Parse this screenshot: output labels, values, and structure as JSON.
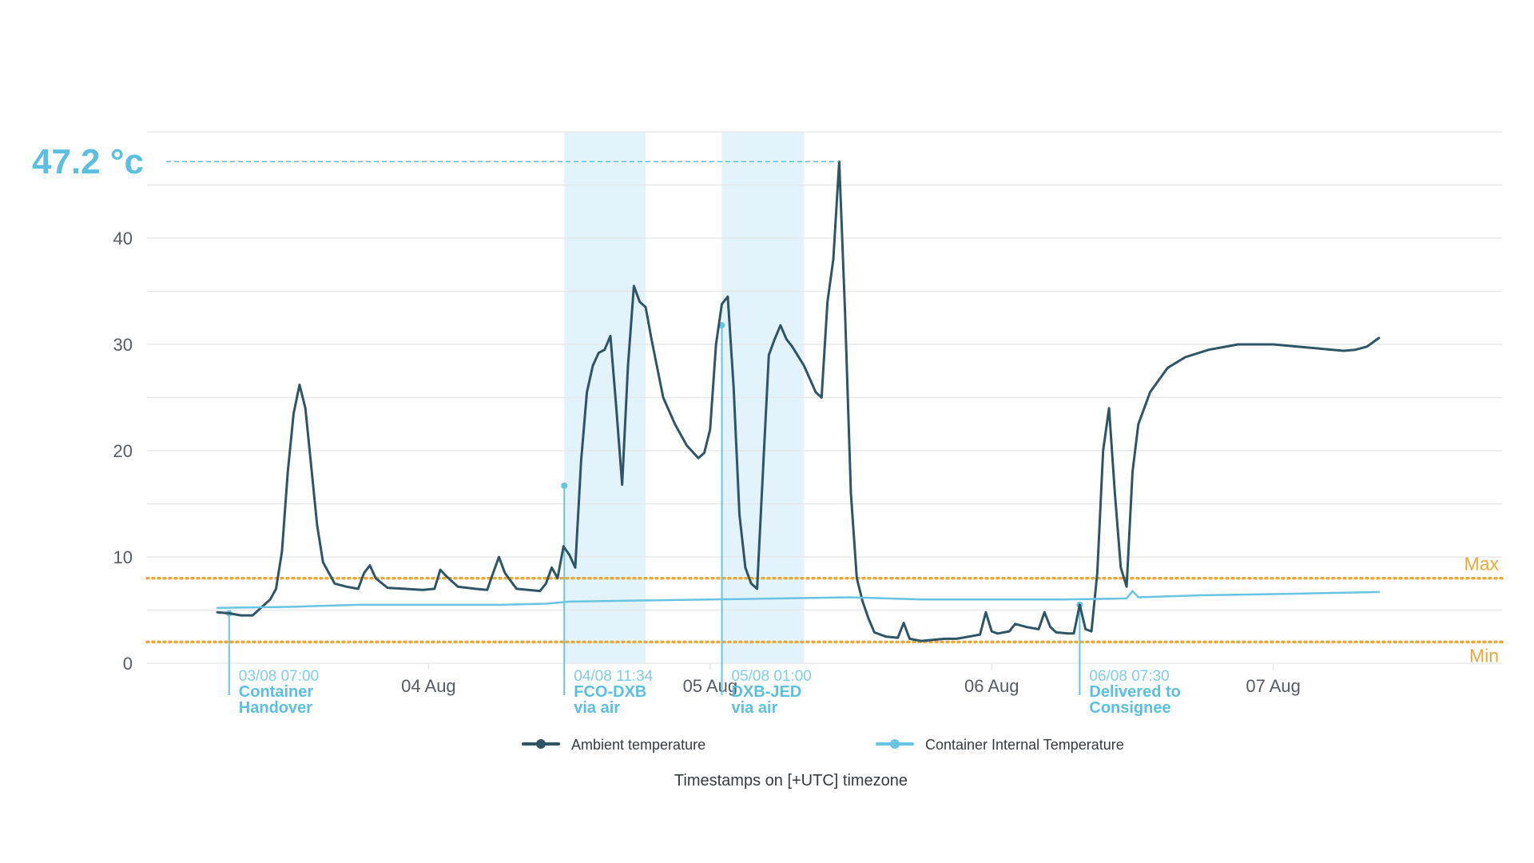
{
  "colors": {
    "ambient": "#2e5566",
    "internal": "#69c3e3",
    "peak_label": "#5bbfdf",
    "band": "#e2f3fb",
    "limit": "#e9a93a",
    "grid": "#e6e8ea",
    "axis_text": "#555b63"
  },
  "peak": {
    "label": "47.2 °c",
    "value": 47.2
  },
  "footer": {
    "note": "Timestamps on [+UTC] timezone"
  },
  "chart_data": {
    "type": "line",
    "title": "",
    "xlabel": "",
    "ylabel": "",
    "ylim": [
      0,
      50
    ],
    "yticks": [
      {
        "value": 0,
        "label": "0"
      },
      {
        "value": 10,
        "label": "10"
      },
      {
        "value": 20,
        "label": "20"
      },
      {
        "value": 30,
        "label": "30"
      },
      {
        "value": 40,
        "label": "40"
      }
    ],
    "xlim": [
      "03/08 00:00",
      "07/08 19:30"
    ],
    "xticks": [
      {
        "x": "04/08 00:00",
        "label": "04 Aug"
      },
      {
        "x": "05/08 00:00",
        "label": "05 Aug"
      },
      {
        "x": "06/08 00:00",
        "label": "06 Aug"
      },
      {
        "x": "07/08 00:00",
        "label": "07 Aug"
      }
    ],
    "limits": [
      {
        "name": "Max",
        "value": 8
      },
      {
        "name": "Min",
        "value": 2
      }
    ],
    "bands": [
      {
        "start": "04/08 11:34",
        "end": "04/08 18:30"
      },
      {
        "start": "05/08 01:00",
        "end": "05/08 08:00"
      }
    ],
    "events": [
      {
        "x": "03/08 07:00",
        "time_label": "03/08 07:00",
        "lines": [
          "Container",
          "Handover"
        ],
        "y": 4.7
      },
      {
        "x": "04/08 11:34",
        "time_label": "04/08 11:34",
        "lines": [
          "FCO-DXB",
          "via air"
        ],
        "y": 16.7
      },
      {
        "x": "05/08 01:00",
        "time_label": "05/08 01:00",
        "lines": [
          "DXB-JED",
          "via air"
        ],
        "y": 31.8
      },
      {
        "x": "06/08 07:30",
        "time_label": "06/08 07:30",
        "lines": [
          "Delivered to",
          "Consignee"
        ],
        "y": 5.5
      }
    ],
    "series": [
      {
        "name": "Ambient temperature",
        "points": [
          [
            "03/08 06:00",
            4.8
          ],
          [
            "03/08 07:00",
            4.7
          ],
          [
            "03/08 08:00",
            4.5
          ],
          [
            "03/08 09:00",
            4.5
          ],
          [
            "03/08 10:00",
            5.5
          ],
          [
            "03/08 10:30",
            6.0
          ],
          [
            "03/08 11:00",
            7.0
          ],
          [
            "03/08 11:30",
            10.5
          ],
          [
            "03/08 12:00",
            18.0
          ],
          [
            "03/08 12:30",
            23.5
          ],
          [
            "03/08 13:00",
            26.2
          ],
          [
            "03/08 13:30",
            24.0
          ],
          [
            "03/08 14:00",
            18.5
          ],
          [
            "03/08 14:30",
            13.0
          ],
          [
            "03/08 15:00",
            9.5
          ],
          [
            "03/08 16:00",
            7.5
          ],
          [
            "03/08 17:00",
            7.2
          ],
          [
            "03/08 18:00",
            7.0
          ],
          [
            "03/08 18:30",
            8.5
          ],
          [
            "03/08 19:00",
            9.2
          ],
          [
            "03/08 19:30",
            8.0
          ],
          [
            "03/08 20:30",
            7.1
          ],
          [
            "03/08 22:00",
            7.0
          ],
          [
            "03/08 23:30",
            6.9
          ],
          [
            "04/08 00:30",
            7.0
          ],
          [
            "04/08 01:00",
            8.8
          ],
          [
            "04/08 01:30",
            8.2
          ],
          [
            "04/08 02:30",
            7.2
          ],
          [
            "04/08 04:00",
            7.0
          ],
          [
            "04/08 05:00",
            6.9
          ],
          [
            "04/08 05:30",
            8.5
          ],
          [
            "04/08 06:00",
            10.0
          ],
          [
            "04/08 06:30",
            8.5
          ],
          [
            "04/08 07:30",
            7.0
          ],
          [
            "04/08 09:30",
            6.8
          ],
          [
            "04/08 10:00",
            7.5
          ],
          [
            "04/08 10:30",
            9.0
          ],
          [
            "04/08 11:00",
            8.0
          ],
          [
            "04/08 11:30",
            11.0
          ],
          [
            "04/08 12:00",
            10.2
          ],
          [
            "04/08 12:30",
            9.0
          ],
          [
            "04/08 13:00",
            19.0
          ],
          [
            "04/08 13:30",
            25.5
          ],
          [
            "04/08 14:00",
            28.0
          ],
          [
            "04/08 14:30",
            29.2
          ],
          [
            "04/08 15:00",
            29.5
          ],
          [
            "04/08 15:30",
            30.8
          ],
          [
            "04/08 16:00",
            24.0
          ],
          [
            "04/08 16:30",
            16.8
          ],
          [
            "04/08 17:00",
            28.0
          ],
          [
            "04/08 17:30",
            35.5
          ],
          [
            "04/08 18:00",
            34.0
          ],
          [
            "04/08 18:30",
            33.5
          ],
          [
            "04/08 19:00",
            30.5
          ],
          [
            "04/08 20:00",
            25.0
          ],
          [
            "04/08 21:00",
            22.5
          ],
          [
            "04/08 22:00",
            20.5
          ],
          [
            "04/08 23:00",
            19.3
          ],
          [
            "04/08 23:30",
            19.8
          ],
          [
            "05/08 00:00",
            22.0
          ],
          [
            "05/08 00:30",
            30.0
          ],
          [
            "05/08 01:00",
            33.8
          ],
          [
            "05/08 01:30",
            34.5
          ],
          [
            "05/08 02:00",
            26.0
          ],
          [
            "05/08 02:30",
            14.0
          ],
          [
            "05/08 03:00",
            9.0
          ],
          [
            "05/08 03:30",
            7.5
          ],
          [
            "05/08 04:00",
            7.0
          ],
          [
            "05/08 04:30",
            18.0
          ],
          [
            "05/08 05:00",
            29.0
          ],
          [
            "05/08 05:30",
            30.5
          ],
          [
            "05/08 06:00",
            31.8
          ],
          [
            "05/08 06:30",
            30.5
          ],
          [
            "05/08 07:00",
            29.8
          ],
          [
            "05/08 08:00",
            28.0
          ],
          [
            "05/08 09:00",
            25.5
          ],
          [
            "05/08 09:30",
            25.0
          ],
          [
            "05/08 10:00",
            34.0
          ],
          [
            "05/08 10:30",
            38.0
          ],
          [
            "05/08 11:00",
            47.2
          ],
          [
            "05/08 11:30",
            33.0
          ],
          [
            "05/08 12:00",
            16.0
          ],
          [
            "05/08 12:30",
            8.0
          ],
          [
            "05/08 13:00",
            5.8
          ],
          [
            "05/08 13:30",
            4.2
          ],
          [
            "05/08 14:00",
            2.9
          ],
          [
            "05/08 15:00",
            2.5
          ],
          [
            "05/08 16:00",
            2.4
          ],
          [
            "05/08 16:30",
            3.8
          ],
          [
            "05/08 17:00",
            2.3
          ],
          [
            "05/08 18:00",
            2.1
          ],
          [
            "05/08 19:00",
            2.2
          ],
          [
            "05/08 20:00",
            2.3
          ],
          [
            "05/08 21:00",
            2.3
          ],
          [
            "05/08 22:00",
            2.5
          ],
          [
            "05/08 23:00",
            2.7
          ],
          [
            "05/08 23:30",
            4.8
          ],
          [
            "06/08 00:00",
            3.0
          ],
          [
            "06/08 00:30",
            2.8
          ],
          [
            "06/08 01:30",
            3.0
          ],
          [
            "06/08 02:00",
            3.7
          ],
          [
            "06/08 03:00",
            3.4
          ],
          [
            "06/08 04:00",
            3.2
          ],
          [
            "06/08 04:30",
            4.8
          ],
          [
            "06/08 05:00",
            3.4
          ],
          [
            "06/08 05:30",
            2.9
          ],
          [
            "06/08 06:30",
            2.8
          ],
          [
            "06/08 07:00",
            2.8
          ],
          [
            "06/08 07:30",
            5.5
          ],
          [
            "06/08 08:00",
            3.2
          ],
          [
            "06/08 08:30",
            3.0
          ],
          [
            "06/08 09:00",
            8.5
          ],
          [
            "06/08 09:30",
            20.0
          ],
          [
            "06/08 10:00",
            24.0
          ],
          [
            "06/08 10:30",
            16.0
          ],
          [
            "06/08 11:00",
            9.0
          ],
          [
            "06/08 11:30",
            7.2
          ],
          [
            "06/08 12:00",
            18.0
          ],
          [
            "06/08 12:30",
            22.5
          ],
          [
            "06/08 13:30",
            25.5
          ],
          [
            "06/08 15:00",
            27.8
          ],
          [
            "06/08 16:30",
            28.8
          ],
          [
            "06/08 18:30",
            29.5
          ],
          [
            "06/08 21:00",
            30.0
          ],
          [
            "07/08 00:00",
            30.0
          ],
          [
            "07/08 03:00",
            29.7
          ],
          [
            "07/08 06:00",
            29.4
          ],
          [
            "07/08 07:00",
            29.5
          ],
          [
            "07/08 08:00",
            29.8
          ],
          [
            "07/08 09:00",
            30.6
          ]
        ]
      },
      {
        "name": "Container Internal Temperature",
        "points": [
          [
            "03/08 06:00",
            5.2
          ],
          [
            "03/08 12:00",
            5.3
          ],
          [
            "03/08 18:00",
            5.5
          ],
          [
            "04/08 06:00",
            5.5
          ],
          [
            "04/08 10:00",
            5.6
          ],
          [
            "04/08 12:00",
            5.8
          ],
          [
            "04/08 18:00",
            5.9
          ],
          [
            "05/08 00:00",
            6.0
          ],
          [
            "05/08 06:00",
            6.1
          ],
          [
            "05/08 12:00",
            6.2
          ],
          [
            "05/08 18:00",
            6.0
          ],
          [
            "06/08 00:00",
            6.0
          ],
          [
            "06/08 06:00",
            6.0
          ],
          [
            "06/08 11:30",
            6.1
          ],
          [
            "06/08 12:00",
            6.8
          ],
          [
            "06/08 12:30",
            6.2
          ],
          [
            "06/08 18:00",
            6.4
          ],
          [
            "07/08 00:00",
            6.5
          ],
          [
            "07/08 09:00",
            6.7
          ]
        ]
      }
    ]
  }
}
